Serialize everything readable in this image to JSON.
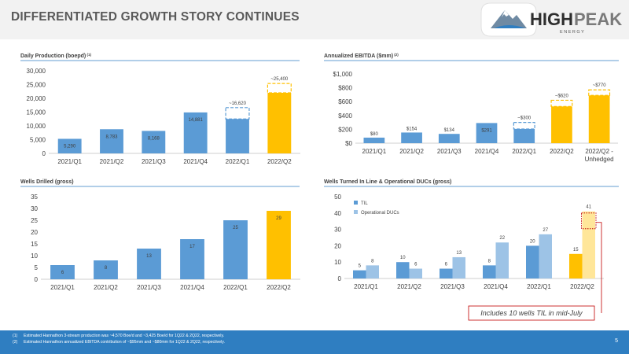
{
  "title": "DIFFERENTIATED GROWTH STORY CONTINUES",
  "logo": {
    "brand_high": "HIGH",
    "brand_peak": "PEAK",
    "subtitle": "E N E R G Y"
  },
  "colors": {
    "blue": "#5b9bd5",
    "gold": "#ffc000",
    "light_blue": "#9dc3e6",
    "light_gold": "#ffe699",
    "footer": "#2f7ec1",
    "red": "#c00000"
  },
  "callout": "Includes 10 wells TIL in mid-July",
  "footnotes": [
    {
      "num": "(1)",
      "text": "Estimated Hannathon 3-stream production was ~4,570 Boe/d and ~3,425 Boe/d for 1Q22 & 2Q22, respectively."
    },
    {
      "num": "(2)",
      "text": "Estimated Hannathon annualized EBITDA contribution of ~$95mm and ~$80mm for 1Q22 & 2Q22, respectively."
    }
  ],
  "page_number": "5",
  "chart_data": [
    {
      "type": "bar",
      "title": "Daily Production (boepd)",
      "title_sup": "(1)",
      "categories": [
        "2021/Q1",
        "2021/Q2",
        "2021/Q3",
        "2021/Q4",
        "2022/Q1",
        "2022/Q2"
      ],
      "values": [
        5290,
        8783,
        8168,
        14881,
        12500,
        22000
      ],
      "labels": [
        "5,290",
        "8,783",
        "8,168",
        "14,881",
        "",
        ""
      ],
      "projected": [
        null,
        null,
        null,
        null,
        16620,
        25400
      ],
      "projected_labels": [
        "",
        "",
        "",
        "",
        "~16,620",
        "~25,400"
      ],
      "highlight_index": 5,
      "ylim": [
        0,
        30000
      ],
      "yticks": [
        "0",
        "5,000",
        "10,000",
        "15,000",
        "20,000",
        "25,000",
        "30,000"
      ]
    },
    {
      "type": "bar",
      "title": "Annualized EBITDA ($mm)",
      "title_sup": "(2)",
      "categories": [
        "2021/Q1",
        "2021/Q2",
        "2021/Q3",
        "2021/Q4",
        "2022/Q1",
        "2022/Q2",
        "2022/Q2 -"
      ],
      "categories_line2": [
        "",
        "",
        "",
        "",
        "",
        "",
        "Unhedged"
      ],
      "values": [
        80,
        154,
        134,
        291,
        205,
        530,
        690
      ],
      "labels": [
        "$80",
        "$154",
        "$134",
        "$291",
        "",
        "",
        ""
      ],
      "projected": [
        null,
        null,
        null,
        null,
        300,
        620,
        770
      ],
      "projected_labels": [
        "",
        "",
        "",
        "",
        "~$300",
        "~$620",
        "~$770"
      ],
      "highlight_index": [
        5,
        6
      ],
      "ylim": [
        0,
        1000
      ],
      "yticks": [
        "$0",
        "$200",
        "$400",
        "$600",
        "$800",
        "$1,000"
      ]
    },
    {
      "type": "bar",
      "title": "Wells Drilled (gross)",
      "categories": [
        "2021/Q1",
        "2021/Q2",
        "2021/Q3",
        "2021/Q4",
        "2022/Q1",
        "2022/Q2"
      ],
      "values": [
        6,
        8,
        13,
        17,
        25,
        29
      ],
      "labels": [
        "6",
        "8",
        "13",
        "17",
        "25",
        "29"
      ],
      "highlight_index": 5,
      "ylim": [
        0,
        35
      ],
      "yticks": [
        "0",
        "5",
        "10",
        "15",
        "20",
        "25",
        "30",
        "35"
      ]
    },
    {
      "type": "bar",
      "title": "Wells Turned In Line & Operational DUCs (gross)",
      "categories": [
        "2021/Q1",
        "2021/Q2",
        "2021/Q3",
        "2021/Q4",
        "2022/Q1",
        "2022/Q2"
      ],
      "series": [
        {
          "name": "TIL",
          "values": [
            5,
            10,
            6,
            8,
            20,
            15
          ]
        },
        {
          "name": "Operational DUCs",
          "values": [
            8,
            6,
            13,
            22,
            27,
            41
          ]
        }
      ],
      "highlight_index": 5,
      "ylim": [
        0,
        50
      ],
      "yticks": [
        "0",
        "10",
        "20",
        "30",
        "40",
        "50"
      ]
    }
  ]
}
